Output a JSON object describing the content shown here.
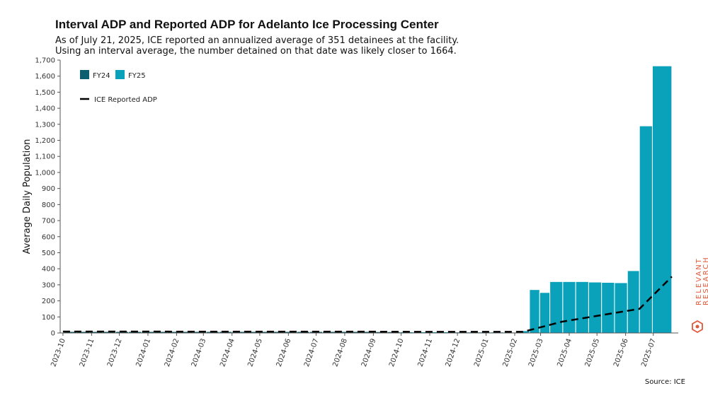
{
  "title": "Interval ADP and Reported ADP for Adelanto Ice Processing Center",
  "subtitle_line1": "As of July 21, 2025, ICE reported an annualized average of 351 detainees at the facility.",
  "subtitle_line2": "Using an interval average, the number detained on that date was likely closer to 1664.",
  "source": "Source: ICE",
  "brand": [
    "RELEVANT",
    "RESEARCH"
  ],
  "colors": {
    "fy24": "#0b5f6e",
    "fy25": "#0aa1ba",
    "line": "#000000"
  },
  "chart_data": {
    "type": "bar",
    "ylabel": "Average Daily Population",
    "ylim": [
      0,
      1700
    ],
    "yticks": [
      0,
      100,
      200,
      300,
      400,
      500,
      600,
      700,
      800,
      900,
      1000,
      1100,
      1200,
      1300,
      1400,
      1500,
      1600,
      1700
    ],
    "ytick_labels": [
      "0",
      "100",
      "200",
      "300",
      "400",
      "500",
      "600",
      "700",
      "800",
      "900",
      "1,000",
      "1,100",
      "1,200",
      "1,300",
      "1,400",
      "1,500",
      "1,600",
      "1,700"
    ],
    "x_ticks": [
      "2023-10",
      "2023-11",
      "2023-12",
      "2024-01",
      "2024-02",
      "2024-03",
      "2024-04",
      "2024-05",
      "2024-06",
      "2024-07",
      "2024-08",
      "2024-09",
      "2024-10",
      "2024-11",
      "2024-12",
      "2025-01",
      "2025-02",
      "2025-03",
      "2025-04",
      "2025-05",
      "2025-06",
      "2025-07"
    ],
    "x_range": [
      "2023-09-28",
      "2025-07-28"
    ],
    "legend": [
      {
        "name": "FY24",
        "kind": "bar"
      },
      {
        "name": "FY25",
        "kind": "bar"
      },
      {
        "name": "ICE Reported ADP",
        "kind": "dashed-line"
      }
    ],
    "bars": [
      {
        "start": "2023-10-02",
        "end": "2023-10-16",
        "value": 9,
        "series": "FY24"
      },
      {
        "start": "2023-10-16",
        "end": "2023-10-30",
        "value": 9,
        "series": "FY24"
      },
      {
        "start": "2023-10-30",
        "end": "2023-11-13",
        "value": 9,
        "series": "FY24"
      },
      {
        "start": "2023-11-13",
        "end": "2023-11-27",
        "value": 9,
        "series": "FY24"
      },
      {
        "start": "2023-11-27",
        "end": "2023-12-11",
        "value": 9,
        "series": "FY24"
      },
      {
        "start": "2023-12-11",
        "end": "2023-12-25",
        "value": 9,
        "series": "FY24"
      },
      {
        "start": "2023-12-25",
        "end": "2024-01-08",
        "value": 9,
        "series": "FY24"
      },
      {
        "start": "2024-01-08",
        "end": "2024-01-22",
        "value": 9,
        "series": "FY24"
      },
      {
        "start": "2024-01-22",
        "end": "2024-02-05",
        "value": 9,
        "series": "FY24"
      },
      {
        "start": "2024-02-05",
        "end": "2024-02-19",
        "value": 9,
        "series": "FY24"
      },
      {
        "start": "2024-02-19",
        "end": "2024-03-04",
        "value": 9,
        "series": "FY24"
      },
      {
        "start": "2024-03-04",
        "end": "2024-03-18",
        "value": 9,
        "series": "FY24"
      },
      {
        "start": "2024-03-18",
        "end": "2024-04-01",
        "value": 9,
        "series": "FY24"
      },
      {
        "start": "2024-04-01",
        "end": "2024-04-15",
        "value": 9,
        "series": "FY24"
      },
      {
        "start": "2024-04-15",
        "end": "2024-04-29",
        "value": 9,
        "series": "FY24"
      },
      {
        "start": "2024-04-29",
        "end": "2024-05-13",
        "value": 9,
        "series": "FY24"
      },
      {
        "start": "2024-05-13",
        "end": "2024-05-27",
        "value": 9,
        "series": "FY24"
      },
      {
        "start": "2024-05-27",
        "end": "2024-06-10",
        "value": 9,
        "series": "FY24"
      },
      {
        "start": "2024-06-10",
        "end": "2024-06-24",
        "value": 9,
        "series": "FY24"
      },
      {
        "start": "2024-06-24",
        "end": "2024-07-08",
        "value": 9,
        "series": "FY24"
      },
      {
        "start": "2024-07-08",
        "end": "2024-07-22",
        "value": 9,
        "series": "FY24"
      },
      {
        "start": "2024-07-22",
        "end": "2024-08-05",
        "value": 9,
        "series": "FY24"
      },
      {
        "start": "2024-08-05",
        "end": "2024-08-19",
        "value": 9,
        "series": "FY24"
      },
      {
        "start": "2024-08-19",
        "end": "2024-09-02",
        "value": 9,
        "series": "FY24"
      },
      {
        "start": "2024-09-02",
        "end": "2024-09-16",
        "value": 8,
        "series": "FY24"
      },
      {
        "start": "2024-09-16",
        "end": "2024-09-30",
        "value": 8,
        "series": "FY24"
      },
      {
        "start": "2024-09-30",
        "end": "2024-10-14",
        "value": 7,
        "series": "FY25"
      },
      {
        "start": "2024-10-14",
        "end": "2024-10-28",
        "value": 7,
        "series": "FY25"
      },
      {
        "start": "2024-10-28",
        "end": "2024-11-11",
        "value": 7,
        "series": "FY25"
      },
      {
        "start": "2024-11-11",
        "end": "2024-11-25",
        "value": 7,
        "series": "FY25"
      },
      {
        "start": "2024-11-25",
        "end": "2024-12-09",
        "value": 6,
        "series": "FY25"
      },
      {
        "start": "2024-12-09",
        "end": "2024-12-23",
        "value": 6,
        "series": "FY25"
      },
      {
        "start": "2024-12-23",
        "end": "2025-01-06",
        "value": 6,
        "series": "FY25"
      },
      {
        "start": "2025-01-06",
        "end": "2025-01-20",
        "value": 6,
        "series": "FY25"
      },
      {
        "start": "2025-01-20",
        "end": "2025-02-03",
        "value": 5,
        "series": "FY25"
      },
      {
        "start": "2025-02-03",
        "end": "2025-02-17",
        "value": 14,
        "series": "FY25"
      },
      {
        "start": "2025-02-17",
        "end": "2025-02-28",
        "value": 270,
        "series": "FY25"
      },
      {
        "start": "2025-02-28",
        "end": "2025-03-11",
        "value": 252,
        "series": "FY25"
      },
      {
        "start": "2025-03-11",
        "end": "2025-03-25",
        "value": 320,
        "series": "FY25"
      },
      {
        "start": "2025-03-25",
        "end": "2025-04-08",
        "value": 320,
        "series": "FY25"
      },
      {
        "start": "2025-04-08",
        "end": "2025-04-22",
        "value": 320,
        "series": "FY25"
      },
      {
        "start": "2025-04-22",
        "end": "2025-05-06",
        "value": 317,
        "series": "FY25"
      },
      {
        "start": "2025-05-06",
        "end": "2025-05-20",
        "value": 315,
        "series": "FY25"
      },
      {
        "start": "2025-05-20",
        "end": "2025-06-03",
        "value": 313,
        "series": "FY25"
      },
      {
        "start": "2025-06-03",
        "end": "2025-06-16",
        "value": 388,
        "series": "FY25"
      },
      {
        "start": "2025-06-16",
        "end": "2025-06-30",
        "value": 1290,
        "series": "FY25"
      },
      {
        "start": "2025-06-30",
        "end": "2025-07-21",
        "value": 1664,
        "series": "FY25"
      }
    ],
    "line": {
      "name": "ICE Reported ADP",
      "points": [
        {
          "date": "2023-10-01",
          "value": 9
        },
        {
          "date": "2024-09-30",
          "value": 8
        },
        {
          "date": "2024-10-14",
          "value": 7
        },
        {
          "date": "2025-02-10",
          "value": 7
        },
        {
          "date": "2025-03-24",
          "value": 70
        },
        {
          "date": "2025-05-05",
          "value": 110
        },
        {
          "date": "2025-06-16",
          "value": 150
        },
        {
          "date": "2025-07-21",
          "value": 351
        }
      ]
    }
  }
}
